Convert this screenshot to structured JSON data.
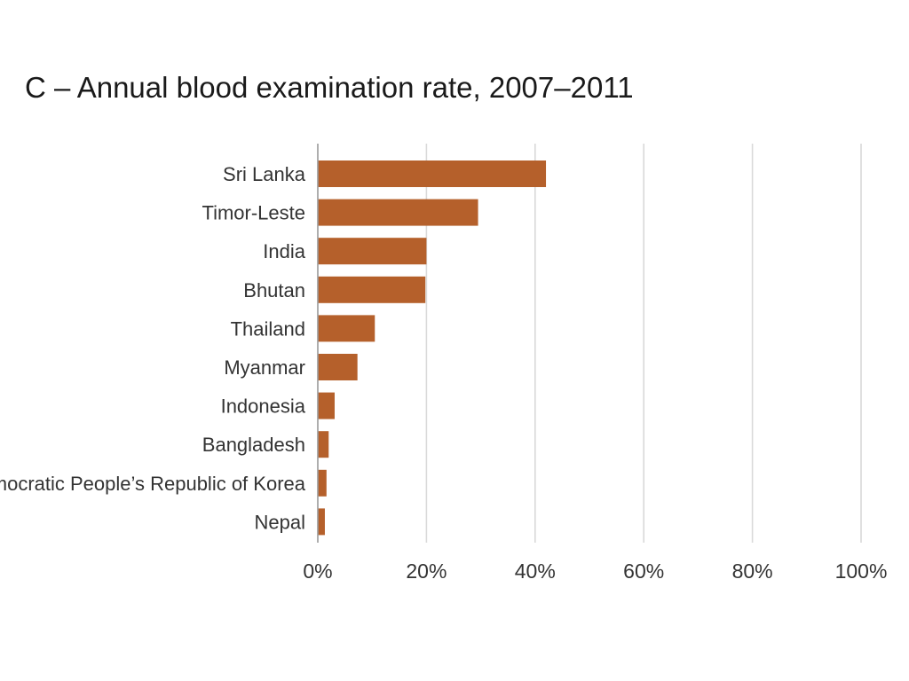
{
  "chart_data": {
    "type": "bar",
    "orientation": "horizontal",
    "title": "C – Annual blood examination rate, 2007–2011",
    "categories": [
      "Sri Lanka",
      "Timor-Leste",
      "India",
      "Bhutan",
      "Thailand",
      "Myanmar",
      "Indonesia",
      "Bangladesh",
      "Democratic People’s Republic of Korea",
      "Nepal"
    ],
    "values": [
      42,
      29.5,
      20,
      19.8,
      10.5,
      7.3,
      3.1,
      2,
      1.6,
      1.3
    ],
    "unit": "%",
    "xlim": [
      0,
      100
    ],
    "x_ticks": [
      0,
      20,
      40,
      60,
      80,
      100
    ],
    "x_tick_labels": [
      "0%",
      "20%",
      "40%",
      "60%",
      "80%",
      "100%"
    ],
    "xlabel": "",
    "ylabel": "",
    "grid": true,
    "legend": "none",
    "bar_color": "#b5602b",
    "grid_color": "#d9d9d9",
    "axis_color": "#9a9a9a"
  }
}
